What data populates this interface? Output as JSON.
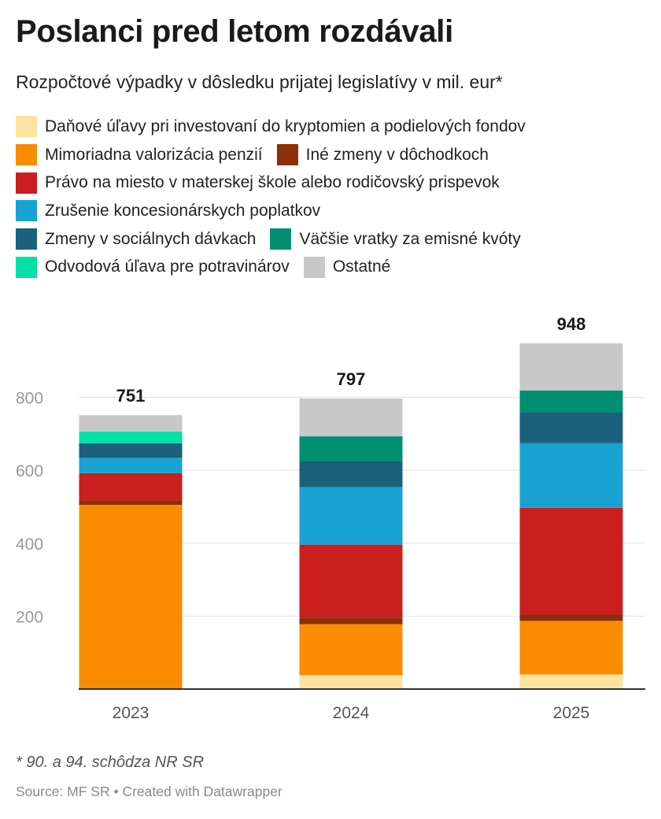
{
  "header": {
    "title": "Poslanci pred letom rozdávali",
    "subtitle": "Rozpočtové výpadky v dôsledku prijatej legislatívy v mil. eur*"
  },
  "legend_rows": [
    [
      0
    ],
    [
      1,
      2
    ],
    [
      3
    ],
    [
      4
    ],
    [
      5,
      6
    ],
    [
      7,
      8
    ]
  ],
  "chart_data": {
    "type": "bar",
    "stacked": true,
    "categories": [
      "2023",
      "2024",
      "2025"
    ],
    "totals": [
      751,
      797,
      948
    ],
    "ylim": [
      0,
      948
    ],
    "yticks": [
      200,
      400,
      600,
      800
    ],
    "grid": true,
    "legend_position": "top",
    "series": [
      {
        "name": "Daňové úľavy pri investovaní do kryptomien a podielových fondov",
        "color": "#fde3a0",
        "values": [
          0,
          38,
          40
        ]
      },
      {
        "name": "Mimoriadna valorizácia penzií",
        "color": "#f98c01",
        "values": [
          505,
          140,
          147
        ]
      },
      {
        "name": "Iné zmeny v dôchodkoch",
        "color": "#8b2e0a",
        "values": [
          12,
          18,
          17
        ]
      },
      {
        "name": "Právo na miesto v materskej škole alebo rodičovský prispevok",
        "color": "#c91f1f",
        "values": [
          75,
          200,
          293
        ]
      },
      {
        "name": "Zrušenie koncesionárskych poplatkov",
        "color": "#19a3d2",
        "values": [
          42,
          158,
          177
        ]
      },
      {
        "name": "Zmeny v sociálnych dávkach",
        "color": "#1b607c",
        "values": [
          40,
          71,
          85
        ]
      },
      {
        "name": "Väčšie vratky za emisné kvóty",
        "color": "#008f71",
        "values": [
          0,
          68,
          60
        ]
      },
      {
        "name": "Odvodová úľava pre potravinárov",
        "color": "#00e0a8",
        "values": [
          32,
          0,
          0
        ]
      },
      {
        "name": "Ostatné",
        "color": "#c8c8c8",
        "values": [
          45,
          104,
          129
        ]
      }
    ]
  },
  "footer": {
    "note": "* 90. a 94. schôdza NR SR",
    "source": "Source: MF SR • Created with Datawrapper"
  }
}
